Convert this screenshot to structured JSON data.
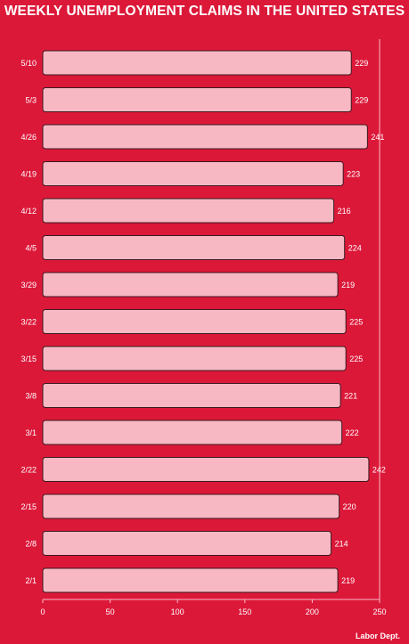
{
  "chart_data": {
    "type": "bar",
    "orientation": "horizontal",
    "title": "WEEKLY UNEMPLOYMENT CLAIMS IN THE UNITED STATES",
    "categories": [
      "5/10",
      "5/3",
      "4/26",
      "4/19",
      "4/12",
      "4/5",
      "3/29",
      "3/22",
      "3/15",
      "3/8",
      "3/1",
      "2/22",
      "2/15",
      "2/8",
      "2/1"
    ],
    "values": [
      229,
      229,
      241,
      223,
      216,
      224,
      219,
      225,
      225,
      221,
      222,
      242,
      220,
      214,
      219
    ],
    "x_ticks": [
      0,
      50,
      100,
      150,
      200,
      250
    ],
    "xlim": [
      0,
      250
    ],
    "grid": true,
    "source": "Labor Dept."
  },
  "colors": {
    "background": "#dc1839",
    "bar_fill": "#f7b8c3",
    "bar_stroke": "#3a1a1f",
    "text": "#ffffff"
  }
}
